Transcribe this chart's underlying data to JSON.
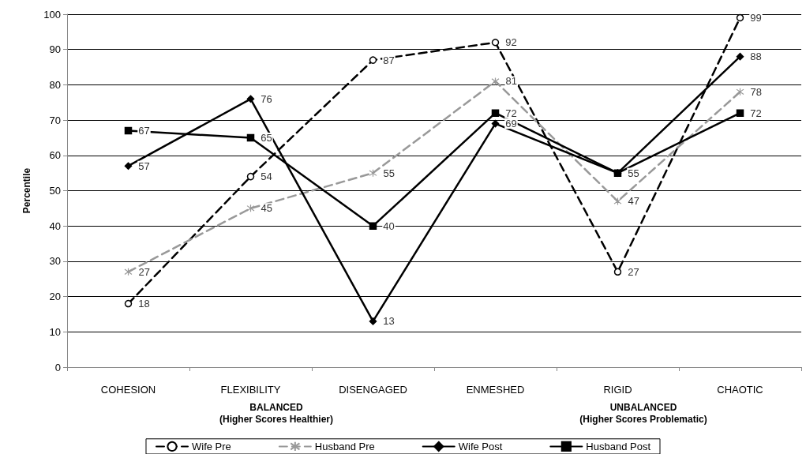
{
  "chart_data": {
    "type": "line",
    "ylabel": "Percentile",
    "categories": [
      "COHESION",
      "FLEXIBILITY",
      "DISENGAGED",
      "ENMESHED",
      "RIGID",
      "CHAOTIC"
    ],
    "series": [
      {
        "name": "Wife Pre",
        "color": "#000000",
        "marker": "circle",
        "line_style": "dashed",
        "values": [
          18,
          54,
          87,
          92,
          27,
          99
        ],
        "value_labels": [
          "18",
          "54",
          "87",
          "92",
          "27",
          "99"
        ]
      },
      {
        "name": "Husband Pre",
        "color": "#999999",
        "marker": "cross",
        "line_style": "dashed",
        "values": [
          27,
          45,
          55,
          81,
          47,
          78
        ],
        "value_labels": [
          "27",
          "45",
          "55",
          "81",
          "47",
          "78"
        ]
      },
      {
        "name": "Wife Post",
        "color": "#000000",
        "marker": "diamond",
        "line_style": "solid",
        "values": [
          57,
          76,
          13,
          69,
          55,
          88
        ],
        "value_labels": [
          "57",
          "76",
          "13",
          "69",
          "55",
          "88"
        ]
      },
      {
        "name": "Husband Post",
        "color": "#000000",
        "marker": "square",
        "line_style": "solid",
        "values": [
          67,
          65,
          40,
          72,
          55,
          72
        ],
        "value_labels": [
          "67",
          "65",
          "40",
          "72",
          null,
          "72"
        ]
      }
    ],
    "ylim": [
      0,
      100
    ],
    "yticks": [
      0,
      10,
      20,
      30,
      40,
      50,
      60,
      70,
      80,
      90,
      100
    ],
    "grid": "y",
    "legend": "bottom",
    "annotations": [
      "BALANCED\n(Higher Scores Healthier)",
      "UNBALANCED\n(Higher Scores Problematic)"
    ]
  }
}
